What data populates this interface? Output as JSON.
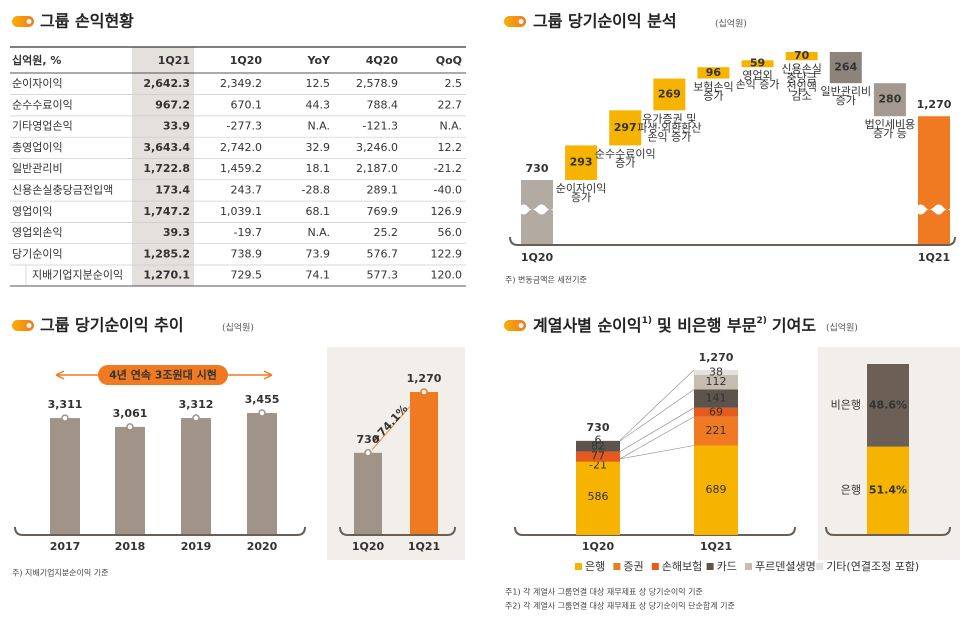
{
  "table": {
    "title": "그룹 손익현황",
    "headers": [
      "십억원, %",
      "1Q21",
      "1Q20",
      "YoY",
      "4Q20",
      "QoQ"
    ],
    "rows": [
      [
        "순이자이익",
        "2,642.3",
        "2,349.2",
        "12.5",
        "2,578.9",
        "2.5"
      ],
      [
        "순수수료이익",
        "967.2",
        "670.1",
        "44.3",
        "788.4",
        "22.7"
      ],
      [
        "기타영업손익",
        "33.9",
        "-277.3",
        "N.A.",
        "-121.3",
        "N.A."
      ],
      [
        "총영업이익",
        "3,643.4",
        "2,742.0",
        "32.9",
        "3,246.0",
        "12.2"
      ],
      [
        "일반관리비",
        "1,722.8",
        "1,459.2",
        "18.1",
        "2,187.0",
        "-21.2"
      ],
      [
        "신용손실충당금전입액",
        "173.4",
        "243.7",
        "-28.8",
        "289.1",
        "-40.0"
      ],
      [
        "영업이익",
        "1,747.2",
        "1,039.1",
        "68.1",
        "769.9",
        "126.9"
      ],
      [
        "영업외손익",
        "39.3",
        "-19.7",
        "N.A.",
        "25.2",
        "56.0"
      ],
      [
        "당기순이익",
        "1,285.2",
        "738.9",
        "73.9",
        "576.7",
        "122.9"
      ],
      [
        "지배기업지분순이익",
        "1,270.1",
        "729.5",
        "74.1",
        "577.3",
        "120.0"
      ]
    ]
  },
  "chart_data": [
    {
      "type": "waterfall",
      "title": "그룹 당기순이익 분석",
      "unit": "(십억원)",
      "categories": [
        [
          "1Q20"
        ],
        [
          "순이자이익",
          "증가"
        ],
        [
          "순수수료이익",
          "증가"
        ],
        [
          "유가증권 및",
          "파생·외환환산",
          "손익 증가"
        ],
        [
          "보험손익",
          "증가"
        ],
        [
          "영업외",
          "손익 증가"
        ],
        [
          "신용손실",
          "충당금",
          "전입액",
          "감소"
        ],
        [
          "일반관리비",
          "증가"
        ],
        [
          "법인세비용",
          "증가 등"
        ],
        [
          "1Q21"
        ]
      ],
      "values": [
        730,
        293,
        297,
        269,
        96,
        59,
        70,
        -264,
        -280,
        1270
      ],
      "value_labels": [
        "730",
        "293",
        "297",
        "269",
        "96",
        "59",
        "70",
        "264",
        "280",
        "1,270"
      ],
      "colors": [
        "#b3aaa1",
        "#f6b400",
        "#f6b400",
        "#f6b400",
        "#f6b400",
        "#f6b400",
        "#f6b400",
        "#8c837b",
        "#a39990",
        "#f07a22"
      ],
      "footnote": "주) 변동금액은 세전기준"
    },
    {
      "type": "bar",
      "title": "그룹 당기순이익 추이",
      "unit": "(십억원)",
      "categories": [
        "2017",
        "2018",
        "2019",
        "2020"
      ],
      "values": [
        3311,
        3061,
        3312,
        3455
      ],
      "value_labels": [
        "3,311",
        "3,061",
        "3,312",
        "3,455"
      ],
      "color": "#a09488",
      "annotation": "4년 연속 3조원대 시현",
      "footnote": "주) 지배기업지분순이익 기준"
    },
    {
      "type": "bar",
      "categories": [
        "1Q20",
        "1Q21"
      ],
      "values": [
        730,
        1270
      ],
      "value_labels": [
        "730",
        "1,270"
      ],
      "colors": [
        "#a09488",
        "#f07a22"
      ],
      "annotation": "+74.1%"
    },
    {
      "type": "stacked_bar",
      "title": [
        "계열사별 순이익",
        "1)",
        "및 비은행 부문",
        "2)",
        "기여도"
      ],
      "unit": "(십억원)",
      "categories": [
        "1Q20",
        "1Q21"
      ],
      "series": [
        {
          "name": "은행",
          "color": "#f6b400",
          "values": [
            586,
            689
          ]
        },
        {
          "name": "증권",
          "color": "#f07a22",
          "values": [
            -21,
            221
          ]
        },
        {
          "name": "손해보험",
          "color": "#e55a1e",
          "values": [
            77,
            69
          ]
        },
        {
          "name": "카드",
          "color": "#5e544c",
          "values": [
            82,
            141
          ]
        },
        {
          "name": "푸르덴셜생명",
          "color": "#c7bcb0",
          "values": [
            null,
            112
          ]
        },
        {
          "name": "기타(연결조정 포함)",
          "color": "#e3e1de",
          "values": [
            6,
            38
          ]
        }
      ],
      "totals": {
        "values": [
          730,
          1270
        ],
        "value_labels": [
          "730",
          "1,270"
        ]
      },
      "footnotes": [
        "주1) 각 계열사 그룹연결 대상 재무제표 상 당기순이익 기준",
        "주2) 각 계열사 그룹연결 대상 재무제표 상 당기순이익 단순합계 기준"
      ]
    },
    {
      "type": "share_bar",
      "categories": [
        "은행",
        "비은행"
      ],
      "values": [
        51.4,
        48.6
      ],
      "value_labels": [
        "51.4%",
        "48.6%"
      ],
      "colors": [
        "#f6b400",
        "#6b5f56"
      ]
    }
  ]
}
